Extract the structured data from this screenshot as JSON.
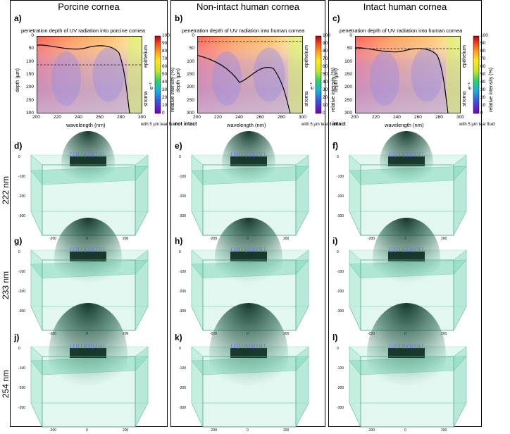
{
  "columns": [
    {
      "title": "Porcine cornea",
      "heat_label": "a)",
      "heat_title": "penetration depth of UV radiation into porcine cornea",
      "status_tag": "",
      "sim_labels": [
        "d)",
        "g)",
        "j)"
      ],
      "epithelium_depth": 0,
      "lower_line": 112
    },
    {
      "title": "Non-intact human cornea",
      "heat_label": "b)",
      "heat_title": "penetration depth of UV radiation into human cornea",
      "status_tag": "not intact",
      "sim_labels": [
        "e)",
        "h)",
        "k)"
      ],
      "epithelium_depth": 20,
      "lower_line": null
    },
    {
      "title": "Intact human cornea",
      "heat_label": "c)",
      "heat_title": "penetration depth of UV radiation into human cornea",
      "status_tag": "intact",
      "sim_labels": [
        "f)",
        "i)",
        "l)"
      ],
      "epithelium_depth": 48,
      "lower_line": null
    }
  ],
  "heatmap": {
    "xlabel": "wavelength (nm)",
    "ylabel": "depth (µm)",
    "x_ticks": [
      "200",
      "220",
      "240",
      "260",
      "280",
      "300"
    ],
    "y_ticks": [
      "0",
      "50",
      "100",
      "150",
      "200",
      "250",
      "300"
    ],
    "colorbar_label": "relative intensity (%)",
    "colorbar_ticks": [
      "100",
      "90",
      "80",
      "70",
      "60",
      "50",
      "40",
      "30",
      "20",
      "10",
      "0"
    ],
    "colorbar_marker": "e⁻¹",
    "layer_labels": {
      "epithelium": "epithelium",
      "stroma": "stroma"
    },
    "tear_note": "with 5 µm tear fluid"
  },
  "rows": [
    {
      "label": "222 nm"
    },
    {
      "label": "233 nm"
    },
    {
      "label": "254 nm"
    }
  ],
  "sim_axis": {
    "x_ticks": [
      "-200",
      "0",
      "200"
    ],
    "z_ticks": [
      "0",
      "-100",
      "-200",
      "-300"
    ]
  },
  "colors": {
    "box_face": "#c9f2e3",
    "box_edge": "#5fbf9e",
    "rays": "#123c2c",
    "beam": "#6a5cf0"
  }
}
